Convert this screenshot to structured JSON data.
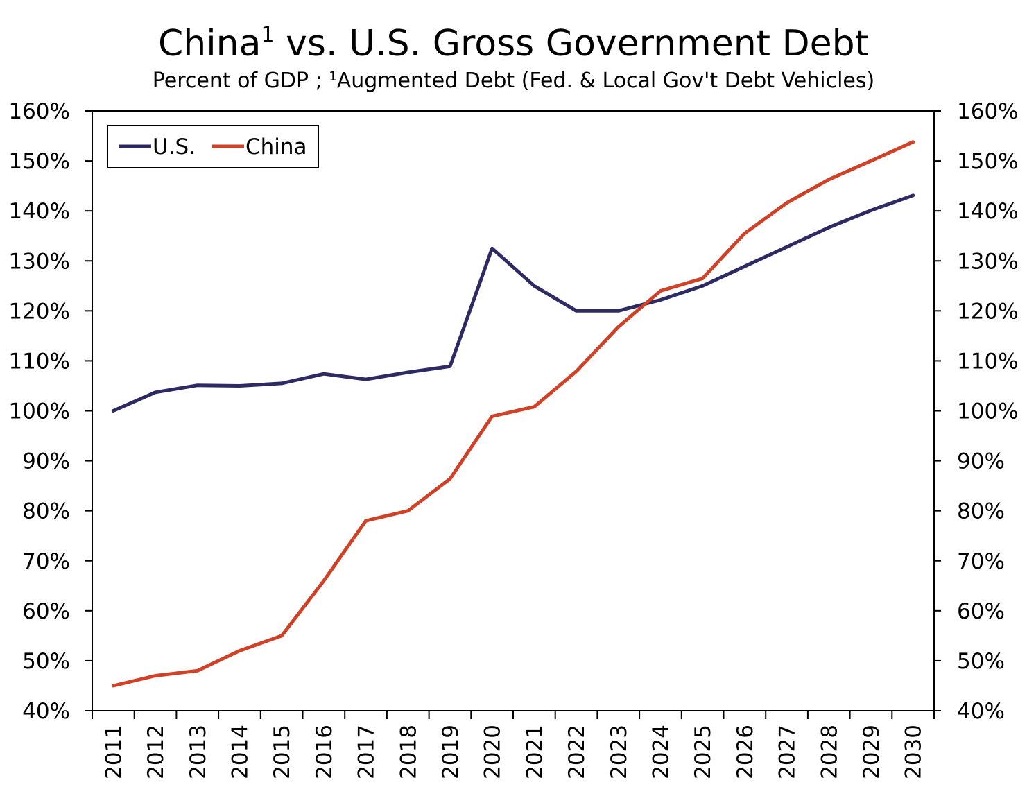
{
  "chart_data": {
    "type": "line",
    "title": "China vs. U.S. Gross Government Debt",
    "title_main": "China",
    "title_sup": "1",
    "title_rest": " vs. U.S. Gross Government Debt",
    "subtitle": "Percent of GDP ; 1Augmented Debt (Fed. & Local Gov't Debt Vehicles)",
    "subtitle_a": "Percent of GDP ; ",
    "subtitle_sup": "1",
    "subtitle_b": "Augmented Debt (Fed. & Local Gov't Debt Vehicles)",
    "categories": [
      "2011",
      "2012",
      "2013",
      "2014",
      "2015",
      "2016",
      "2017",
      "2018",
      "2019",
      "2020",
      "2021",
      "2022",
      "2023",
      "2024",
      "2025",
      "2026",
      "2027",
      "2028",
      "2029",
      "2030"
    ],
    "series": [
      {
        "name": "U.S.",
        "color": "#2e2a63",
        "values": [
          100,
          103.7,
          105.1,
          105,
          105.5,
          107.4,
          106.3,
          107.7,
          108.9,
          132.5,
          125,
          120,
          120,
          122.2,
          125,
          128.9,
          132.8,
          136.7,
          140.1,
          143.1
        ]
      },
      {
        "name": "China",
        "color": "#d04228",
        "values": [
          45,
          47,
          48,
          52,
          55,
          66,
          78,
          80,
          86.4,
          98.9,
          100.8,
          107.9,
          116.8,
          124,
          126.5,
          135.5,
          141.6,
          146.3,
          150,
          153.8
        ]
      }
    ],
    "ylim": [
      40,
      160
    ],
    "ytick_step": 10,
    "ytick_labels": [
      "40%",
      "50%",
      "60%",
      "70%",
      "80%",
      "90%",
      "100%",
      "110%",
      "120%",
      "130%",
      "140%",
      "150%",
      "160%"
    ],
    "xlabel": "",
    "ylabel": "",
    "legend_position": "top-left",
    "grid": false
  }
}
